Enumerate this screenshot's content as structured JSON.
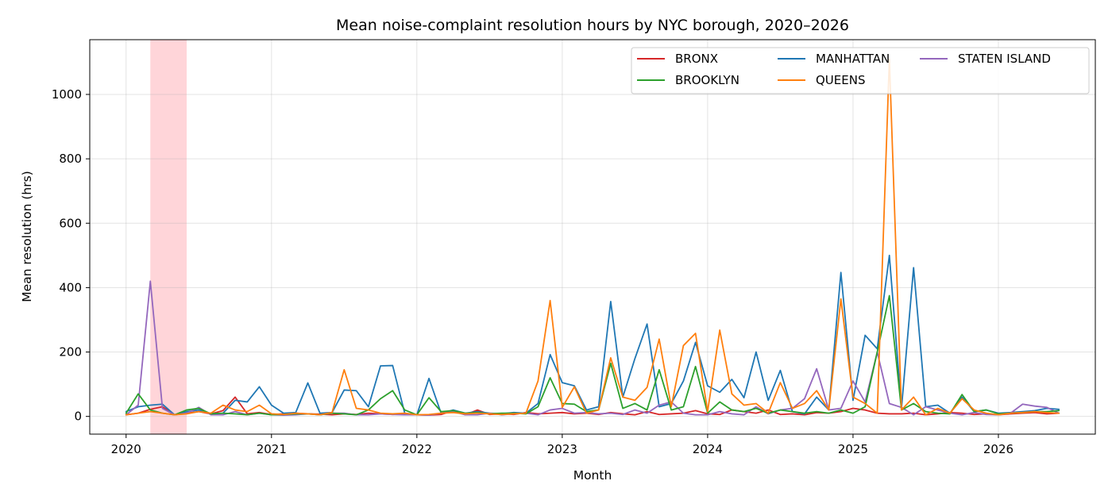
{
  "chart_data": {
    "type": "line",
    "title": "Mean noise-complaint resolution hours by NYC borough, 2020–2026",
    "xlabel": "Month",
    "ylabel": "Mean resolution (hrs)",
    "xlim": [
      "2019-10",
      "2026-09"
    ],
    "ylim": [
      -55,
      1170
    ],
    "xticks": [
      {
        "date": "2020-01",
        "label": "2020"
      },
      {
        "date": "2021-01",
        "label": "2021"
      },
      {
        "date": "2022-01",
        "label": "2022"
      },
      {
        "date": "2023-01",
        "label": "2023"
      },
      {
        "date": "2024-01",
        "label": "2024"
      },
      {
        "date": "2025-01",
        "label": "2025"
      },
      {
        "date": "2026-01",
        "label": "2026"
      }
    ],
    "yticks": [
      0,
      200,
      400,
      600,
      800,
      1000
    ],
    "grid": true,
    "legend": {
      "placement": "top-right",
      "columns": 3
    },
    "highlight_band": {
      "start": "2020-03",
      "end": "2020-06",
      "color": "#ffb3ba"
    },
    "x": [
      "2020-01",
      "2020-02",
      "2020-03",
      "2020-04",
      "2020-05",
      "2020-06",
      "2020-07",
      "2020-08",
      "2020-09",
      "2020-10",
      "2020-11",
      "2020-12",
      "2021-01",
      "2021-02",
      "2021-03",
      "2021-04",
      "2021-05",
      "2021-06",
      "2021-07",
      "2021-08",
      "2021-09",
      "2021-10",
      "2021-11",
      "2021-12",
      "2022-01",
      "2022-02",
      "2022-03",
      "2022-04",
      "2022-05",
      "2022-06",
      "2022-07",
      "2022-08",
      "2022-09",
      "2022-10",
      "2022-11",
      "2022-12",
      "2023-01",
      "2023-02",
      "2023-03",
      "2023-04",
      "2023-05",
      "2023-06",
      "2023-07",
      "2023-08",
      "2023-09",
      "2023-10",
      "2023-11",
      "2023-12",
      "2024-01",
      "2024-02",
      "2024-03",
      "2024-04",
      "2024-05",
      "2024-06",
      "2024-07",
      "2024-08",
      "2024-09",
      "2024-10",
      "2024-11",
      "2024-12",
      "2025-01",
      "2025-02",
      "2025-03",
      "2025-04",
      "2025-05",
      "2025-06",
      "2025-07",
      "2025-08",
      "2025-09",
      "2025-10",
      "2025-11",
      "2025-12",
      "2026-01",
      "2026-02",
      "2026-03",
      "2026-04",
      "2026-05",
      "2026-06"
    ],
    "series": [
      {
        "name": "BRONX",
        "color": "#d62728",
        "values": [
          5,
          10,
          22,
          30,
          5,
          10,
          15,
          8,
          18,
          60,
          8,
          12,
          6,
          8,
          10,
          8,
          7,
          5,
          8,
          6,
          10,
          8,
          6,
          8,
          5,
          4,
          6,
          18,
          5,
          20,
          6,
          8,
          6,
          12,
          8,
          10,
          12,
          8,
          10,
          6,
          12,
          8,
          5,
          15,
          6,
          8,
          10,
          18,
          8,
          6,
          20,
          15,
          10,
          20,
          6,
          8,
          5,
          12,
          10,
          15,
          25,
          20,
          10,
          8,
          8,
          10,
          5,
          8,
          12,
          10,
          6,
          8,
          5,
          8,
          10,
          12,
          8,
          10
        ]
      },
      {
        "name": "MANHATTAN",
        "color": "#1f77b4",
        "values": [
          15,
          30,
          35,
          38,
          5,
          15,
          20,
          8,
          10,
          50,
          45,
          92,
          35,
          10,
          12,
          104,
          10,
          12,
          82,
          80,
          30,
          157,
          158,
          10,
          5,
          118,
          10,
          20,
          10,
          15,
          10,
          8,
          12,
          10,
          40,
          192,
          105,
          95,
          20,
          30,
          357,
          60,
          180,
          287,
          30,
          40,
          110,
          230,
          95,
          75,
          115,
          58,
          200,
          50,
          143,
          15,
          8,
          60,
          20,
          447,
          50,
          252,
          210,
          500,
          25,
          462,
          30,
          35,
          10,
          60,
          15,
          20,
          10,
          12,
          15,
          18,
          25,
          22
        ]
      },
      {
        "name": "STATEN ISLAND",
        "color": "#9467bd",
        "values": [
          5,
          35,
          420,
          25,
          5,
          10,
          28,
          5,
          5,
          15,
          5,
          10,
          5,
          4,
          5,
          8,
          5,
          10,
          10,
          5,
          5,
          8,
          6,
          5,
          5,
          4,
          10,
          15,
          5,
          5,
          10,
          5,
          8,
          10,
          5,
          20,
          25,
          10,
          12,
          8,
          10,
          6,
          20,
          10,
          35,
          45,
          10,
          5,
          5,
          15,
          8,
          5,
          30,
          8,
          20,
          25,
          55,
          148,
          20,
          25,
          110,
          45,
          200,
          40,
          28,
          5,
          30,
          20,
          10,
          5,
          12,
          6,
          5,
          10,
          38,
          32,
          28,
          10
        ]
      },
      {
        "name": "BROOKLYN",
        "color": "#2ca02c",
        "values": [
          10,
          70,
          20,
          10,
          5,
          20,
          25,
          8,
          10,
          8,
          5,
          10,
          5,
          6,
          8,
          8,
          5,
          10,
          8,
          5,
          20,
          55,
          80,
          20,
          5,
          58,
          15,
          18,
          10,
          12,
          8,
          10,
          10,
          8,
          30,
          120,
          40,
          38,
          15,
          20,
          165,
          25,
          40,
          20,
          145,
          20,
          30,
          155,
          10,
          45,
          20,
          15,
          25,
          10,
          20,
          15,
          10,
          15,
          10,
          20,
          10,
          30,
          200,
          375,
          20,
          40,
          15,
          10,
          8,
          68,
          15,
          20,
          8,
          10,
          12,
          15,
          15,
          18
        ]
      },
      {
        "name": "QUEENS",
        "color": "#ff7f0e",
        "values": [
          5,
          10,
          15,
          10,
          5,
          8,
          15,
          10,
          35,
          20,
          15,
          35,
          8,
          6,
          10,
          8,
          5,
          12,
          145,
          25,
          20,
          10,
          8,
          10,
          5,
          6,
          10,
          12,
          8,
          10,
          8,
          6,
          8,
          10,
          110,
          360,
          28,
          92,
          10,
          20,
          182,
          60,
          50,
          90,
          240,
          30,
          220,
          258,
          15,
          268,
          70,
          35,
          40,
          10,
          105,
          25,
          40,
          80,
          20,
          365,
          60,
          40,
          10,
          1110,
          20,
          60,
          5,
          25,
          10,
          55,
          20,
          10,
          5,
          10,
          12,
          15,
          12,
          10
        ]
      }
    ]
  }
}
